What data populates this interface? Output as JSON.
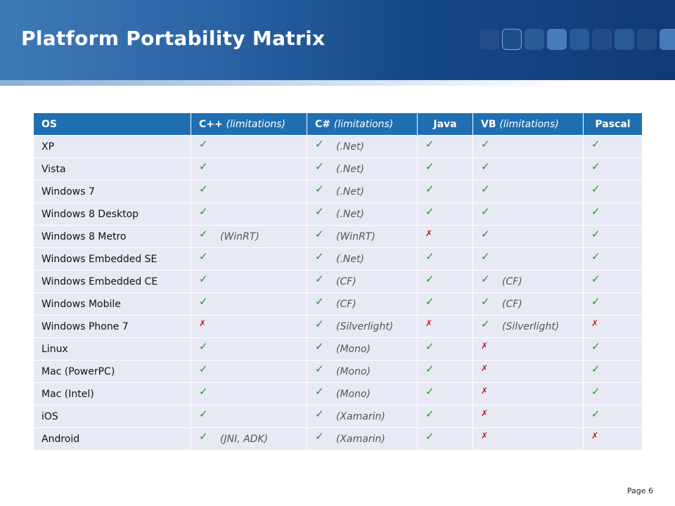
{
  "slide": {
    "title": "Platform Portability Matrix",
    "page_label": "Page 6"
  },
  "icons": {
    "check": "✓",
    "cross": "✗"
  },
  "colors": {
    "header_bg": "#1f6fb2",
    "row_bg": "#e7eaf4",
    "check": "#1a9c1a",
    "cross": "#c41616"
  },
  "table": {
    "headers": [
      {
        "main": "OS",
        "note": ""
      },
      {
        "main": "C++ ",
        "note": "(limitations)"
      },
      {
        "main": "C# ",
        "note": "(limitations)"
      },
      {
        "main": "Java",
        "note": ""
      },
      {
        "main": "VB ",
        "note": "(limitations)"
      },
      {
        "main": "Pascal",
        "note": ""
      }
    ],
    "rows": [
      {
        "os": "XP",
        "cpp": {
          "s": "yes",
          "n": ""
        },
        "cs": {
          "s": "yes",
          "n": "(.Net)"
        },
        "java": {
          "s": "yes",
          "n": ""
        },
        "vb": {
          "s": "yes",
          "n": ""
        },
        "pascal": {
          "s": "yes",
          "n": ""
        }
      },
      {
        "os": "Vista",
        "cpp": {
          "s": "yes",
          "n": ""
        },
        "cs": {
          "s": "yes",
          "n": "(.Net)"
        },
        "java": {
          "s": "yes",
          "n": ""
        },
        "vb": {
          "s": "yes",
          "n": ""
        },
        "pascal": {
          "s": "yes",
          "n": ""
        }
      },
      {
        "os": "Windows 7",
        "cpp": {
          "s": "yes",
          "n": ""
        },
        "cs": {
          "s": "yes",
          "n": "(.Net)"
        },
        "java": {
          "s": "yes",
          "n": ""
        },
        "vb": {
          "s": "yes",
          "n": ""
        },
        "pascal": {
          "s": "yes",
          "n": ""
        }
      },
      {
        "os": "Windows 8 Desktop",
        "cpp": {
          "s": "yes",
          "n": ""
        },
        "cs": {
          "s": "yes",
          "n": "(.Net)"
        },
        "java": {
          "s": "yes",
          "n": ""
        },
        "vb": {
          "s": "yes",
          "n": ""
        },
        "pascal": {
          "s": "yes",
          "n": ""
        }
      },
      {
        "os": "Windows 8 Metro",
        "cpp": {
          "s": "yes",
          "n": "(WinRT)"
        },
        "cs": {
          "s": "yes",
          "n": "(WinRT)"
        },
        "java": {
          "s": "no",
          "n": ""
        },
        "vb": {
          "s": "yes",
          "n": ""
        },
        "pascal": {
          "s": "yes",
          "n": ""
        }
      },
      {
        "os": "Windows Embedded SE",
        "cpp": {
          "s": "yes",
          "n": ""
        },
        "cs": {
          "s": "yes",
          "n": "(.Net)"
        },
        "java": {
          "s": "yes",
          "n": ""
        },
        "vb": {
          "s": "yes",
          "n": ""
        },
        "pascal": {
          "s": "yes",
          "n": ""
        }
      },
      {
        "os": "Windows Embedded CE",
        "cpp": {
          "s": "yes",
          "n": ""
        },
        "cs": {
          "s": "yes",
          "n": "(CF)"
        },
        "java": {
          "s": "yes",
          "n": ""
        },
        "vb": {
          "s": "yes",
          "n": "(CF)"
        },
        "pascal": {
          "s": "yes",
          "n": ""
        }
      },
      {
        "os": "Windows Mobile",
        "cpp": {
          "s": "yes",
          "n": ""
        },
        "cs": {
          "s": "yes",
          "n": "(CF)"
        },
        "java": {
          "s": "yes",
          "n": ""
        },
        "vb": {
          "s": "yes",
          "n": "(CF)"
        },
        "pascal": {
          "s": "yes",
          "n": ""
        }
      },
      {
        "os": "Windows Phone 7",
        "cpp": {
          "s": "no",
          "n": ""
        },
        "cs": {
          "s": "yes",
          "n": "(Silverlight)"
        },
        "java": {
          "s": "no",
          "n": ""
        },
        "vb": {
          "s": "yes",
          "n": "(Silverlight)"
        },
        "pascal": {
          "s": "no",
          "n": ""
        }
      },
      {
        "os": "Linux",
        "cpp": {
          "s": "yes",
          "n": ""
        },
        "cs": {
          "s": "yes",
          "n": "(Mono)"
        },
        "java": {
          "s": "yes",
          "n": ""
        },
        "vb": {
          "s": "no",
          "n": ""
        },
        "pascal": {
          "s": "yes",
          "n": ""
        }
      },
      {
        "os": "Mac (PowerPC)",
        "cpp": {
          "s": "yes",
          "n": ""
        },
        "cs": {
          "s": "yes",
          "n": "(Mono)"
        },
        "java": {
          "s": "yes",
          "n": ""
        },
        "vb": {
          "s": "no",
          "n": ""
        },
        "pascal": {
          "s": "yes",
          "n": ""
        }
      },
      {
        "os": "Mac (Intel)",
        "cpp": {
          "s": "yes",
          "n": ""
        },
        "cs": {
          "s": "yes",
          "n": "(Mono)"
        },
        "java": {
          "s": "yes",
          "n": ""
        },
        "vb": {
          "s": "no",
          "n": ""
        },
        "pascal": {
          "s": "yes",
          "n": ""
        }
      },
      {
        "os": "iOS",
        "cpp": {
          "s": "yes",
          "n": ""
        },
        "cs": {
          "s": "yes",
          "n": "(Xamarin)"
        },
        "java": {
          "s": "yes",
          "n": ""
        },
        "vb": {
          "s": "no",
          "n": ""
        },
        "pascal": {
          "s": "yes",
          "n": ""
        }
      },
      {
        "os": "Android",
        "cpp": {
          "s": "yes",
          "n": "(JNI, ADK)"
        },
        "cs": {
          "s": "yes",
          "n": "(Xamarin)"
        },
        "java": {
          "s": "yes",
          "n": ""
        },
        "vb": {
          "s": "no",
          "n": ""
        },
        "pascal": {
          "s": "no",
          "n": ""
        }
      }
    ]
  }
}
